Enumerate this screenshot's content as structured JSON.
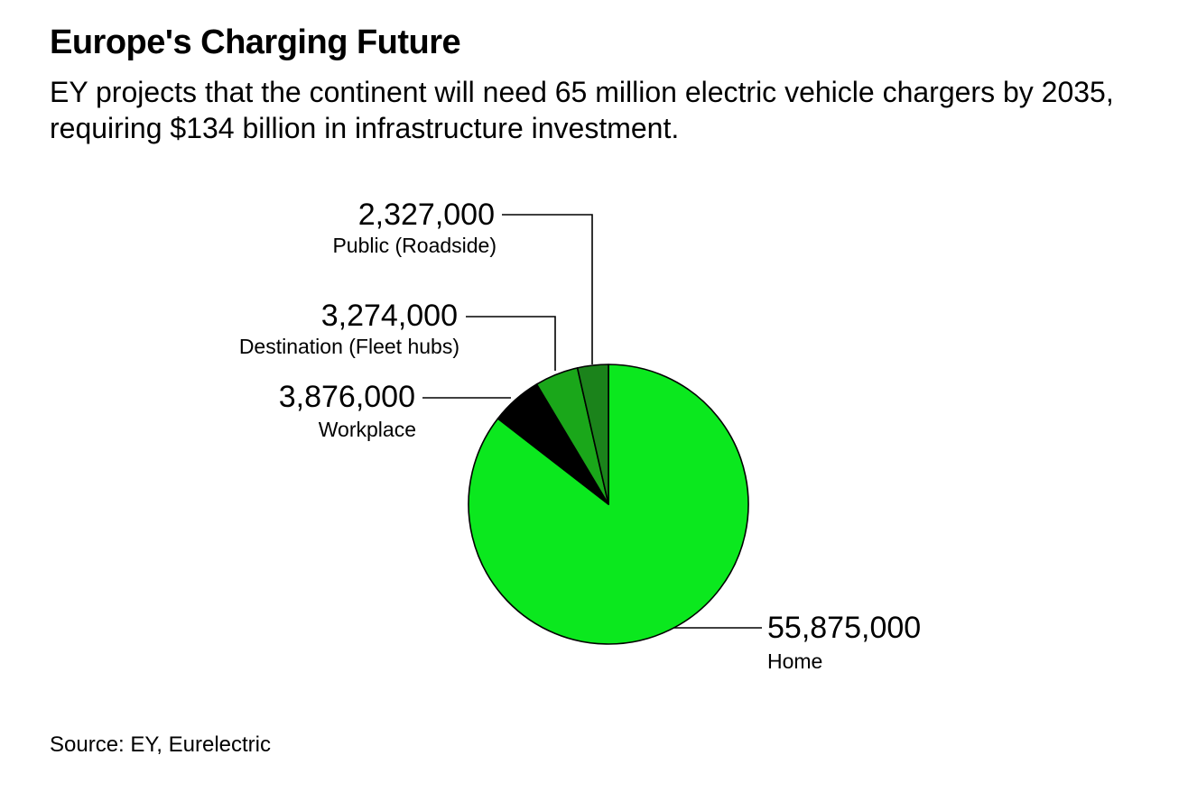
{
  "title": "Europe's Charging Future",
  "subtitle": "EY projects that the continent will need 65 million electric vehicle chargers by 2035, requiring $134 billion in infrastructure investment.",
  "source": "Source: EY, Eurelectric",
  "chart_data": {
    "type": "pie",
    "title": "Europe's Charging Future",
    "categories": [
      "Home",
      "Workplace",
      "Destination (Fleet hubs)",
      "Public (Roadside)"
    ],
    "values": [
      55875000,
      3876000,
      3274000,
      2327000
    ],
    "value_labels": [
      "55,875,000",
      "3,876,000",
      "3,274,000",
      "2,327,000"
    ],
    "colors": [
      "#0be81e",
      "#000000",
      "#1aa71a",
      "#1b831b"
    ],
    "start_angle_deg": 0,
    "direction": "clockwise",
    "stroke": "#000000"
  }
}
